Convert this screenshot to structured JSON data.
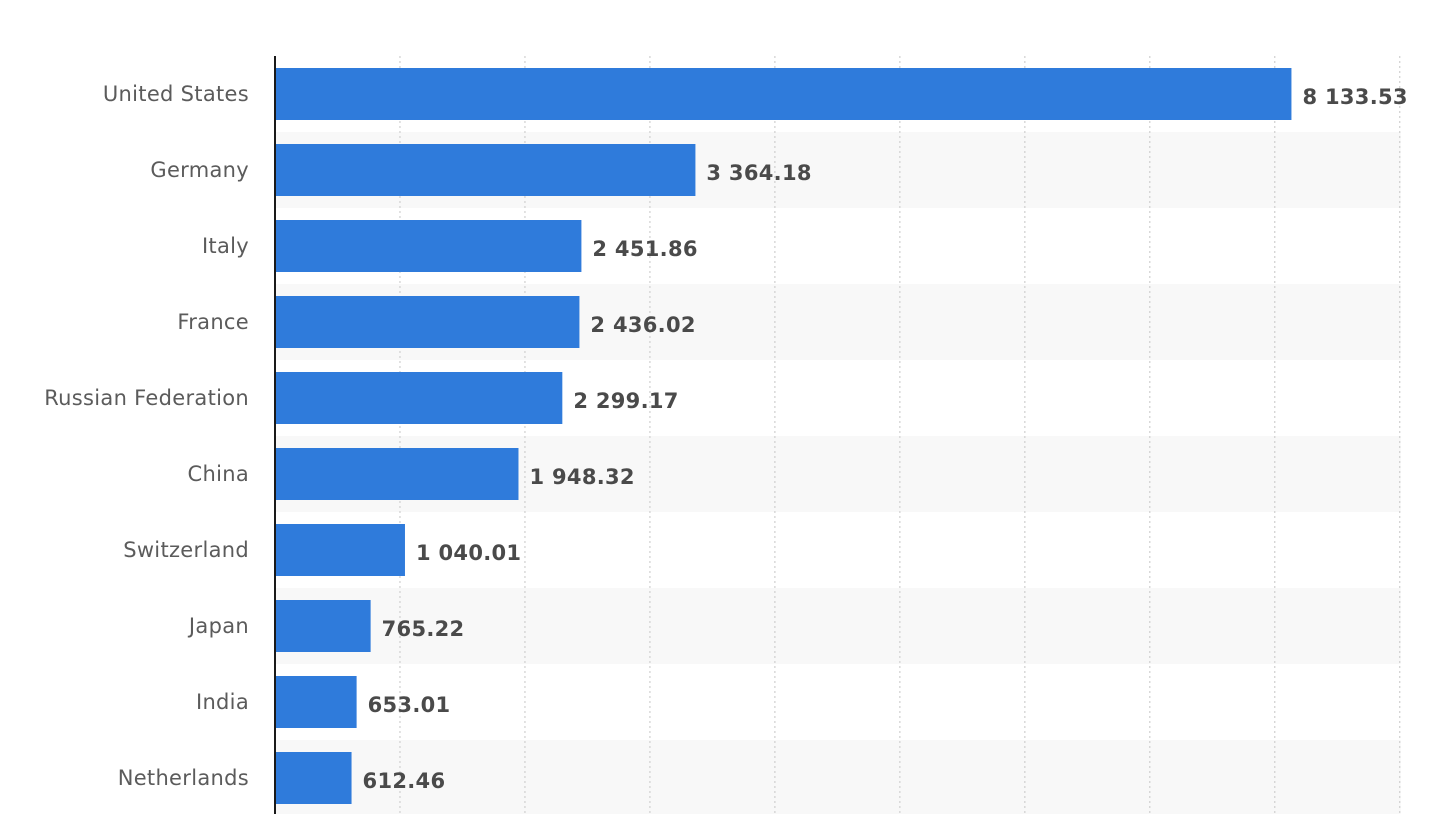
{
  "chart_data": {
    "type": "bar",
    "orientation": "horizontal",
    "categories": [
      "United States",
      "Germany",
      "Italy",
      "France",
      "Russian Federation",
      "China",
      "Switzerland",
      "Japan",
      "India",
      "Netherlands"
    ],
    "values": [
      8133.53,
      3364.18,
      2451.86,
      2436.02,
      2299.17,
      1948.32,
      1040.01,
      765.22,
      653.01,
      612.46
    ],
    "value_labels": [
      "8 133.53",
      "3 364.18",
      "2 451.86",
      "2 436.02",
      "2 299.17",
      "1 948.32",
      "1 040.01",
      "765.22",
      "653.01",
      "612.46"
    ],
    "title": "",
    "xlabel": "",
    "ylabel": "",
    "xlim": [
      0,
      9000
    ],
    "grid_step": 1000,
    "grid": true,
    "alternating_row_bands": true,
    "colors": {
      "bar": "#2f7bdb",
      "band": "#f8f8f8",
      "grid": "#cfcfcf",
      "axis": "#1a1a1a"
    }
  }
}
